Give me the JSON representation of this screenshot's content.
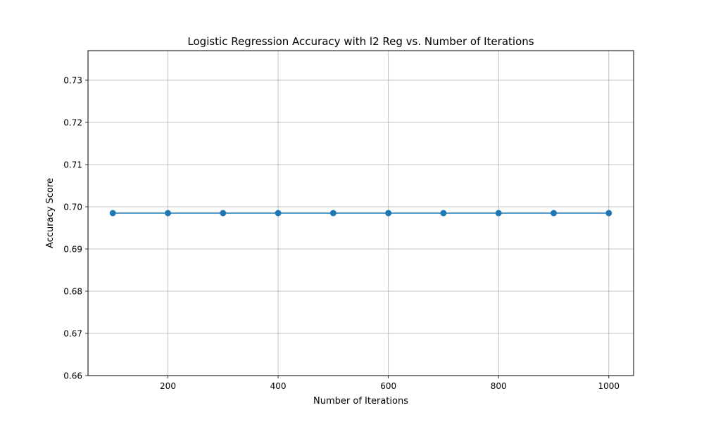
{
  "chart_data": {
    "type": "line",
    "title": "Logistic Regression Accuracy with l2 Reg vs. Number of Iterations",
    "xlabel": "Number of Iterations",
    "ylabel": "Accuracy Score",
    "xlim": [
      55,
      1045
    ],
    "ylim": [
      0.66,
      0.737
    ],
    "x_ticks": [
      200,
      400,
      600,
      800,
      1000
    ],
    "y_ticks": [
      0.66,
      0.67,
      0.68,
      0.69,
      0.7,
      0.71,
      0.72,
      0.73
    ],
    "grid": true,
    "series": [
      {
        "color": "#1f77b4",
        "marker": "circle",
        "x": [
          100,
          200,
          300,
          400,
          500,
          600,
          700,
          800,
          900,
          1000
        ],
        "y": [
          0.6985,
          0.6985,
          0.6985,
          0.6985,
          0.6985,
          0.6985,
          0.6985,
          0.6985,
          0.6985,
          0.6985
        ]
      }
    ]
  }
}
